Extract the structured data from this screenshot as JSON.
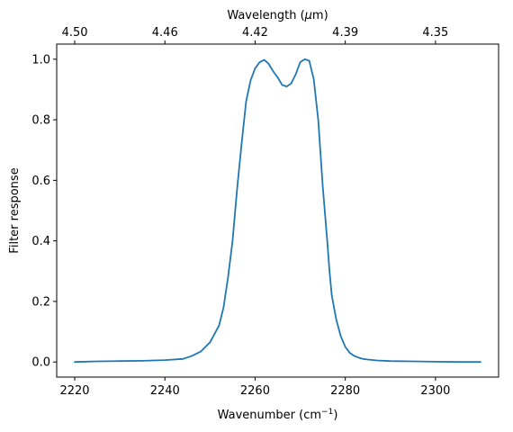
{
  "chart_data": {
    "type": "line",
    "title": "",
    "xlabel": "Wavenumber (cm",
    "xlabel_sup": "−1",
    "xlabel_close": ")",
    "ylabel": "Filter response",
    "top_xlabel": "Wavelength (",
    "top_xlabel_mu": "μ",
    "top_xlabel_unit": "m)",
    "xlim": [
      2216,
      2314
    ],
    "ylim": [
      -0.05,
      1.05
    ],
    "grid": false,
    "color": "#1f77b4",
    "x_ticks": [
      2220,
      2240,
      2260,
      2280,
      2300
    ],
    "y_ticks": [
      0.0,
      0.2,
      0.4,
      0.6,
      0.8,
      1.0
    ],
    "x_tick_labels": [
      "2220",
      "2240",
      "2260",
      "2280",
      "2300"
    ],
    "y_tick_labels": [
      "0.0",
      "0.2",
      "0.4",
      "0.6",
      "0.8",
      "1.0"
    ],
    "top_ticks": [
      {
        "label": "4.50",
        "wavenumber": 2220
      },
      {
        "label": "4.46",
        "wavenumber": 2240
      },
      {
        "label": "4.42",
        "wavenumber": 2260
      },
      {
        "label": "4.39",
        "wavenumber": 2280
      },
      {
        "label": "4.35",
        "wavenumber": 2300
      }
    ],
    "series": [
      {
        "x": [
          2220,
          2225,
          2230,
          2235,
          2240,
          2244,
          2246,
          2248,
          2250,
          2252,
          2253,
          2254,
          2255,
          2256,
          2257,
          2258,
          2259,
          2260,
          2261,
          2262,
          2263,
          2264,
          2265,
          2266,
          2267,
          2268,
          2269,
          2270,
          2271,
          2272,
          2273,
          2274,
          2275,
          2276,
          2276.5,
          2277,
          2278,
          2279,
          2280,
          2281,
          2282,
          2283,
          2284,
          2285,
          2287,
          2290,
          2295,
          2300,
          2305,
          2310
        ],
        "y": [
          0.0,
          0.002,
          0.003,
          0.004,
          0.006,
          0.01,
          0.02,
          0.035,
          0.065,
          0.12,
          0.18,
          0.28,
          0.4,
          0.57,
          0.72,
          0.86,
          0.93,
          0.97,
          0.99,
          0.998,
          0.985,
          0.96,
          0.94,
          0.915,
          0.91,
          0.92,
          0.95,
          0.99,
          1.0,
          0.995,
          0.935,
          0.8,
          0.58,
          0.4,
          0.3,
          0.22,
          0.14,
          0.085,
          0.05,
          0.03,
          0.02,
          0.014,
          0.01,
          0.008,
          0.005,
          0.003,
          0.002,
          0.001,
          0.0,
          0.0
        ]
      }
    ]
  }
}
